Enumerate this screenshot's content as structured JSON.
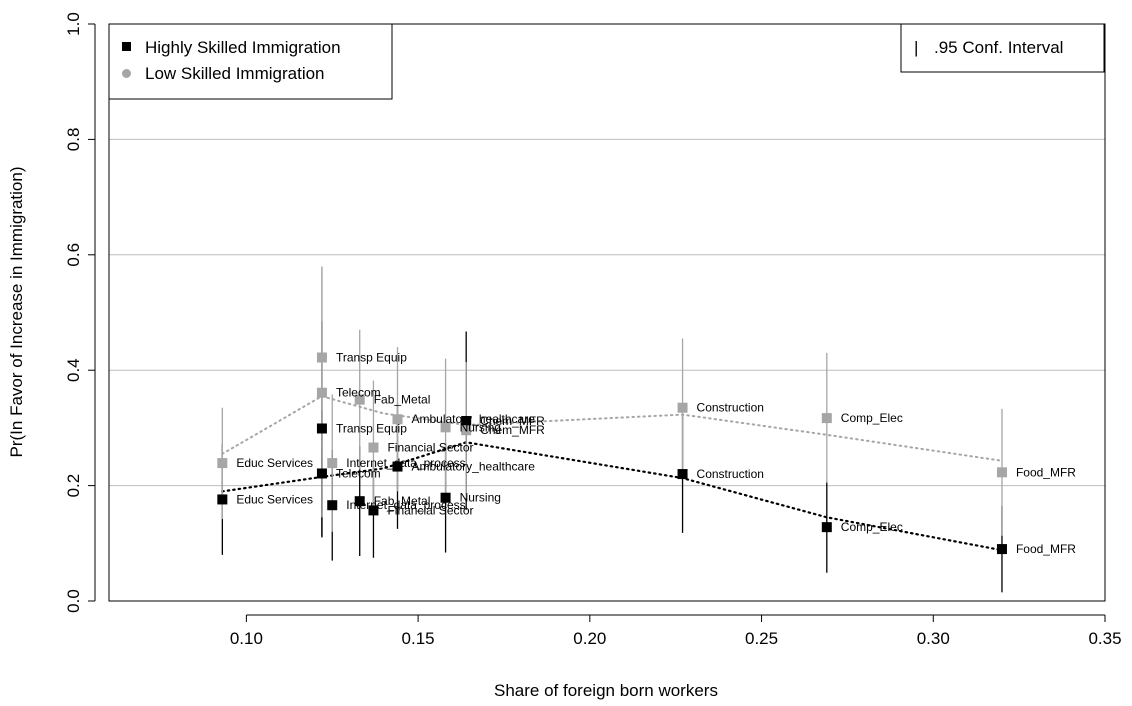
{
  "chart_data": {
    "type": "scatter",
    "xlabel": "Share of foreign born workers",
    "ylabel": "Pr(In Favor of Increase in Immigration)",
    "xlim": [
      0.06,
      0.35
    ],
    "ylim": [
      0.0,
      1.0
    ],
    "xticks": [
      "0.10",
      "0.15",
      "0.20",
      "0.25",
      "0.30",
      "0.35"
    ],
    "xtick_values": [
      0.1,
      0.15,
      0.2,
      0.25,
      0.3,
      0.35
    ],
    "yticks": [
      "0.0",
      "0.2",
      "0.4",
      "0.6",
      "0.8",
      "1.0"
    ],
    "ytick_values": [
      0.0,
      0.2,
      0.4,
      0.6,
      0.8,
      1.0
    ],
    "grid": "horizontal",
    "legend": {
      "placement": "top-left",
      "entries": [
        "Highly Skilled Immigration",
        "Low Skilled Immigration"
      ]
    },
    "ci_legend": {
      "placement": "top-right",
      "symbol": "|",
      "label": ".95 Conf. Interval"
    },
    "series": [
      {
        "name": "Highly Skilled Immigration",
        "color": "#000000",
        "trend_color": "#000000",
        "points": [
          {
            "label": "Educ Services",
            "x": 0.093,
            "y": 0.176,
            "lo": 0.08,
            "hi": 0.272
          },
          {
            "label": "Telecom",
            "x": 0.122,
            "y": 0.221,
            "lo": 0.112,
            "hi": 0.33
          },
          {
            "label": "Transp Equip",
            "x": 0.122,
            "y": 0.299,
            "lo": 0.11,
            "hi": 0.485
          },
          {
            "label": "Internet_data_process",
            "x": 0.125,
            "y": 0.166,
            "lo": 0.07,
            "hi": 0.262
          },
          {
            "label": "Fab_Metal",
            "x": 0.133,
            "y": 0.173,
            "lo": 0.078,
            "hi": 0.268
          },
          {
            "label": "Financial Sector",
            "x": 0.137,
            "y": 0.157,
            "lo": 0.075,
            "hi": 0.239
          },
          {
            "label": "Ambulatory_healthcare",
            "x": 0.144,
            "y": 0.233,
            "lo": 0.125,
            "hi": 0.342
          },
          {
            "label": "Nursing",
            "x": 0.158,
            "y": 0.179,
            "lo": 0.084,
            "hi": 0.274
          },
          {
            "label": "Chem_MFR",
            "x": 0.164,
            "y": 0.312,
            "lo": 0.158,
            "hi": 0.467
          },
          {
            "label": "Construction",
            "x": 0.227,
            "y": 0.22,
            "lo": 0.118,
            "hi": 0.322
          },
          {
            "label": "Comp_Elec",
            "x": 0.269,
            "y": 0.128,
            "lo": 0.049,
            "hi": 0.207
          },
          {
            "label": "Food_MFR",
            "x": 0.32,
            "y": 0.09,
            "lo": 0.015,
            "hi": 0.165
          }
        ],
        "trend": [
          [
            0.093,
            0.19
          ],
          [
            0.122,
            0.215
          ],
          [
            0.14,
            0.23
          ],
          [
            0.164,
            0.275
          ],
          [
            0.227,
            0.213
          ],
          [
            0.269,
            0.145
          ],
          [
            0.32,
            0.088
          ]
        ]
      },
      {
        "name": "Low Skilled Immigration",
        "color": "#a6a6a6",
        "trend_color": "#a6a6a6",
        "points": [
          {
            "label": "Educ Services",
            "x": 0.093,
            "y": 0.239,
            "lo": 0.142,
            "hi": 0.335
          },
          {
            "label": "Telecom",
            "x": 0.122,
            "y": 0.361,
            "lo": 0.145,
            "hi": 0.577
          },
          {
            "label": "Transp Equip",
            "x": 0.122,
            "y": 0.422,
            "lo": 0.265,
            "hi": 0.58
          },
          {
            "label": "Internet_data_process",
            "x": 0.125,
            "y": 0.239,
            "lo": 0.12,
            "hi": 0.358
          },
          {
            "label": "Fab_Metal",
            "x": 0.133,
            "y": 0.349,
            "lo": 0.228,
            "hi": 0.47
          },
          {
            "label": "Financial Sector",
            "x": 0.137,
            "y": 0.266,
            "lo": 0.15,
            "hi": 0.382
          },
          {
            "label": "Ambulatory_healthcare",
            "x": 0.144,
            "y": 0.315,
            "lo": 0.19,
            "hi": 0.44
          },
          {
            "label": "Nursing",
            "x": 0.158,
            "y": 0.301,
            "lo": 0.182,
            "hi": 0.42
          },
          {
            "label": "Chem_MFR",
            "x": 0.164,
            "y": 0.296,
            "lo": 0.178,
            "hi": 0.414
          },
          {
            "label": "Construction",
            "x": 0.227,
            "y": 0.335,
            "lo": 0.215,
            "hi": 0.455
          },
          {
            "label": "Comp_Elec",
            "x": 0.269,
            "y": 0.317,
            "lo": 0.205,
            "hi": 0.43
          },
          {
            "label": "Food_MFR",
            "x": 0.32,
            "y": 0.223,
            "lo": 0.113,
            "hi": 0.333
          }
        ],
        "trend": [
          [
            0.093,
            0.255
          ],
          [
            0.122,
            0.355
          ],
          [
            0.14,
            0.325
          ],
          [
            0.164,
            0.305
          ],
          [
            0.227,
            0.323
          ],
          [
            0.269,
            0.288
          ],
          [
            0.32,
            0.243
          ]
        ]
      }
    ]
  }
}
